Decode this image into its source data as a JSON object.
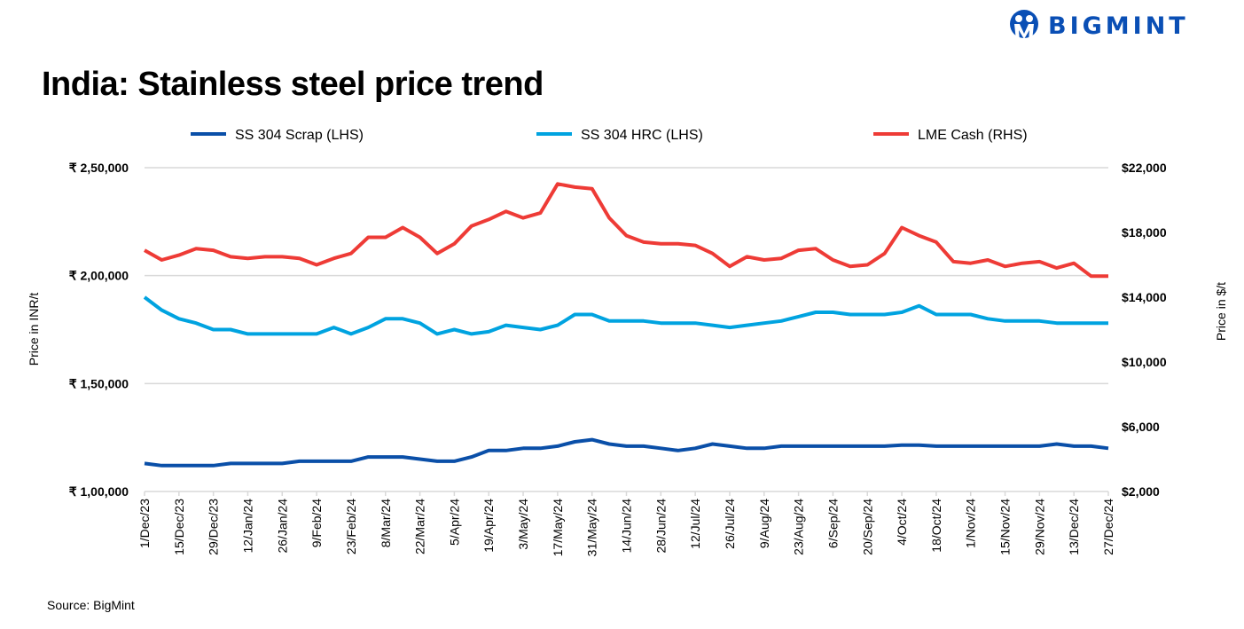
{
  "title": "India: Stainless steel price trend",
  "source": "Source: BigMint",
  "logo_text": "BIGMINT",
  "colors": {
    "scrap": "#0a4fa8",
    "hrc": "#00a3e0",
    "lme": "#ee3b36",
    "grid": "#d9d9d9",
    "logo": "#0a4fb5"
  },
  "chart_data": {
    "type": "line",
    "title": "India: Stainless steel price trend",
    "ylabel": "Price in INR/t",
    "y2label": "Price in $/t",
    "ylim": [
      100000,
      250000
    ],
    "y2lim": [
      2000,
      22000
    ],
    "yticks": [
      {
        "v": 100000,
        "label": "₹ 1,00,000"
      },
      {
        "v": 150000,
        "label": "₹ 1,50,000"
      },
      {
        "v": 200000,
        "label": "₹ 2,00,000"
      },
      {
        "v": 250000,
        "label": "₹ 2,50,000"
      }
    ],
    "y2ticks": [
      {
        "v": 2000,
        "label": "$2,000"
      },
      {
        "v": 6000,
        "label": "$6,000"
      },
      {
        "v": 10000,
        "label": "$10,000"
      },
      {
        "v": 14000,
        "label": "$14,000"
      },
      {
        "v": 18000,
        "label": "$18,000"
      },
      {
        "v": 22000,
        "label": "$22,000"
      }
    ],
    "grid": true,
    "legend": "top",
    "x": [
      "1/Dec/23",
      "8/Dec/23",
      "15/Dec/23",
      "22/Dec/23",
      "29/Dec/23",
      "5/Jan/24",
      "12/Jan/24",
      "19/Jan/24",
      "26/Jan/24",
      "2/Feb/24",
      "9/Feb/24",
      "16/Feb/24",
      "23/Feb/24",
      "1/Mar/24",
      "8/Mar/24",
      "15/Mar/24",
      "22/Mar/24",
      "29/Mar/24",
      "5/Apr/24",
      "12/Apr/24",
      "19/Apr/24",
      "26/Apr/24",
      "3/May/24",
      "10/May/24",
      "17/May/24",
      "24/May/24",
      "31/May/24",
      "7/Jun/24",
      "14/Jun/24",
      "21/Jun/24",
      "28/Jun/24",
      "5/Jul/24",
      "12/Jul/24",
      "19/Jul/24",
      "26/Jul/24",
      "2/Aug/24",
      "9/Aug/24",
      "16/Aug/24",
      "23/Aug/24",
      "30/Aug/24",
      "6/Sep/24",
      "13/Sep/24",
      "20/Sep/24",
      "27/Sep/24",
      "4/Oct/24",
      "11/Oct/24",
      "18/Oct/24",
      "25/Oct/24",
      "1/Nov/24",
      "8/Nov/24",
      "15/Nov/24",
      "22/Nov/24",
      "29/Nov/24",
      "6/Dec/24",
      "13/Dec/24",
      "20/Dec/24",
      "27/Dec/24"
    ],
    "xticks": [
      "1/Dec/23",
      "15/Dec/23",
      "29/Dec/23",
      "12/Jan/24",
      "26/Jan/24",
      "9/Feb/24",
      "23/Feb/24",
      "8/Mar/24",
      "22/Mar/24",
      "5/Apr/24",
      "19/Apr/24",
      "3/May/24",
      "17/May/24",
      "31/May/24",
      "14/Jun/24",
      "28/Jun/24",
      "12/Jul/24",
      "26/Jul/24",
      "9/Aug/24",
      "23/Aug/24",
      "6/Sep/24",
      "20/Sep/24",
      "4/Oct/24",
      "18/Oct/24",
      "1/Nov/24",
      "15/Nov/24",
      "29/Nov/24",
      "13/Dec/24",
      "27/Dec/24"
    ],
    "series": [
      {
        "name": "SS 304 Scrap (LHS)",
        "axis": "left",
        "color": "#0a4fa8",
        "values": [
          113000,
          112000,
          112000,
          112000,
          112000,
          113000,
          113000,
          113000,
          113000,
          114000,
          114000,
          114000,
          114000,
          116000,
          116000,
          116000,
          115000,
          114000,
          114000,
          116000,
          119000,
          119000,
          120000,
          120000,
          121000,
          123000,
          124000,
          122000,
          121000,
          121000,
          120000,
          119000,
          120000,
          122000,
          121000,
          120000,
          120000,
          121000,
          121000,
          121000,
          121000,
          121000,
          121000,
          121000,
          121500,
          121500,
          121000,
          121000,
          121000,
          121000,
          121000,
          121000,
          121000,
          122000,
          121000,
          121000,
          120000
        ]
      },
      {
        "name": "SS 304 HRC (LHS)",
        "axis": "left",
        "color": "#00a3e0",
        "values": [
          190000,
          184000,
          180000,
          178000,
          175000,
          175000,
          173000,
          173000,
          173000,
          173000,
          173000,
          176000,
          173000,
          176000,
          180000,
          180000,
          178000,
          173000,
          175000,
          173000,
          174000,
          177000,
          176000,
          175000,
          177000,
          182000,
          182000,
          179000,
          179000,
          179000,
          178000,
          178000,
          178000,
          177000,
          176000,
          177000,
          178000,
          179000,
          181000,
          183000,
          183000,
          182000,
          182000,
          182000,
          183000,
          186000,
          182000,
          182000,
          182000,
          180000,
          179000,
          179000,
          179000,
          178000,
          178000,
          178000,
          178000
        ]
      },
      {
        "name": "LME Cash (RHS)",
        "axis": "right",
        "color": "#ee3b36",
        "values": [
          16900,
          16300,
          16600,
          17000,
          16900,
          16500,
          16400,
          16500,
          16500,
          16400,
          16000,
          16400,
          16700,
          17700,
          17700,
          18300,
          17700,
          16700,
          17300,
          18400,
          18800,
          19300,
          18900,
          19200,
          21000,
          20800,
          20700,
          18900,
          17800,
          17400,
          17300,
          17300,
          17200,
          16700,
          15900,
          16500,
          16300,
          16400,
          16900,
          17000,
          16300,
          15900,
          16000,
          16700,
          18300,
          17800,
          17400,
          16200,
          16100,
          16300,
          15900,
          16100,
          16200,
          15800,
          16100,
          15300,
          15300
        ]
      }
    ]
  }
}
